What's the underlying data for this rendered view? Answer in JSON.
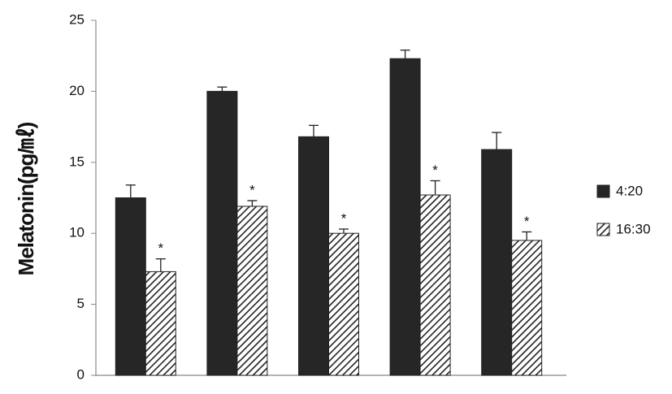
{
  "chart_data": {
    "type": "bar",
    "y_label": "Melatonin(pg/㎖)",
    "categories": [
      null,
      null,
      null,
      null,
      null
    ],
    "series": [
      {
        "name": "4:20",
        "color": "#262626",
        "values": [
          12.5,
          20,
          16.8,
          22.3,
          15.9
        ],
        "errors": [
          0.9,
          0.3,
          0.8,
          0.6,
          1.2
        ]
      },
      {
        "name": "16:30",
        "color": "#262626",
        "pattern": "hatch",
        "values": [
          7.3,
          11.9,
          10.0,
          12.7,
          9.5
        ],
        "errors": [
          0.9,
          0.4,
          0.3,
          1.0,
          0.6
        ],
        "markers": [
          "*",
          "*",
          "*",
          "*",
          "*"
        ]
      }
    ],
    "ylim": [
      0,
      25
    ],
    "yticks": [
      0,
      5,
      10,
      15,
      20,
      25
    ],
    "grid": false,
    "legend": "right"
  }
}
